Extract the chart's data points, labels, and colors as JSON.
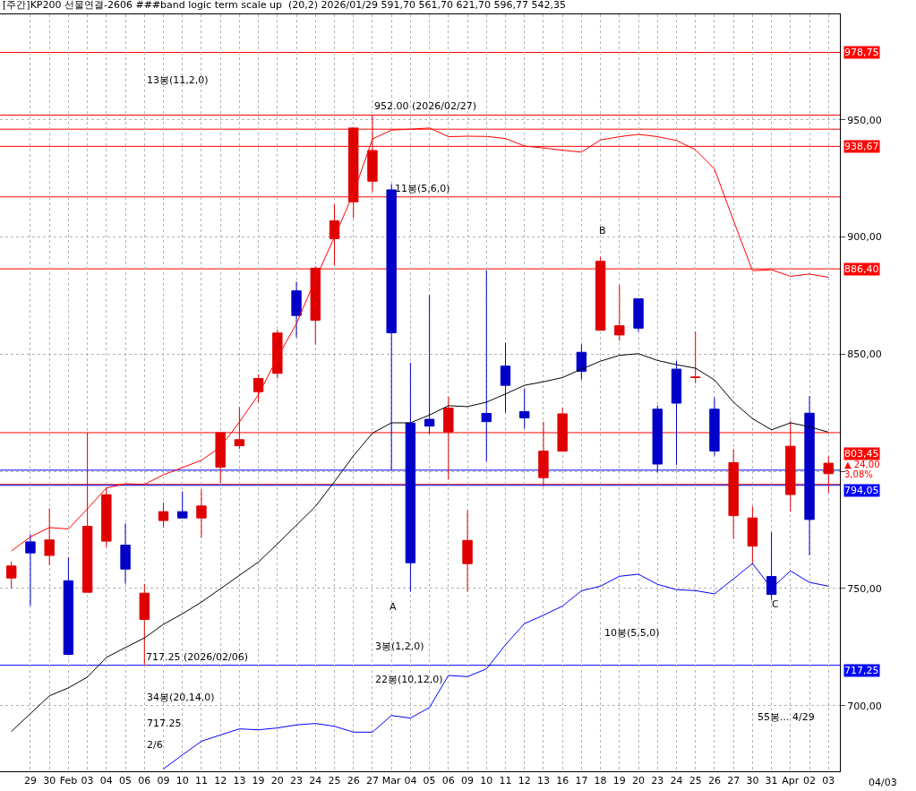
{
  "chart_data": {
    "type": "candlestick",
    "title": "[주간]KP200 선물연결-2606 ###band logic term scale up  (20,2) 2026/01/29 591,70 561,70 621,70 596,77 542,35",
    "categories": [
      null,
      "29",
      "30",
      "Feb",
      "03",
      "04",
      "05",
      "06",
      "09",
      "10",
      "11",
      "12",
      "13",
      "19",
      "20",
      "23",
      "24",
      "25",
      "26",
      "27",
      "Mar",
      "04",
      "05",
      "06",
      "09",
      "10",
      "11",
      "12",
      "13",
      "16",
      "17",
      "18",
      "19",
      "20",
      "23",
      "24",
      "25",
      "26",
      "27",
      "30",
      "31",
      "Apr",
      "02",
      "03"
    ],
    "ohlc": [
      [
        754.5,
        761.6,
        750,
        759.6
      ],
      [
        769.9,
        773.2,
        742.6,
        765.2
      ],
      [
        764.1,
        784.2,
        759.9,
        770.7
      ],
      [
        753.3,
        763.3,
        721.9,
        721.9
      ],
      [
        748.4,
        816.5,
        748.4,
        776.5
      ],
      [
        770.2,
        793,
        767.7,
        790
      ],
      [
        768.5,
        777.8,
        752,
        758.3
      ],
      [
        736.8,
        752,
        717.25,
        748
      ],
      [
        779,
        786.7,
        776,
        782.8
      ],
      [
        782.8,
        791.4,
        780.1,
        780.1
      ],
      [
        780.1,
        792.2,
        771.8,
        785.2
      ],
      [
        801.8,
        816.5,
        795,
        816.5
      ],
      [
        810.9,
        827.4,
        809.6,
        813.5
      ],
      [
        834,
        841.3,
        829.4,
        839.6
      ],
      [
        841.8,
        860.4,
        839.6,
        859
      ],
      [
        877,
        880.9,
        857.2,
        866.5
      ],
      [
        864.5,
        887.5,
        854.2,
        886.7
      ],
      [
        899.3,
        913.9,
        887.8,
        906.9
      ],
      [
        915,
        946.5,
        908,
        946.5
      ],
      [
        923.8,
        952,
        919.3,
        936.9
      ],
      [
        920.1,
        922.6,
        800.4,
        859.1
      ],
      [
        820.6,
        846.3,
        748.7,
        761
      ],
      [
        822.2,
        875.2,
        816,
        819.3
      ],
      [
        816.8,
        831.8,
        796.5,
        827
      ],
      [
        760.6,
        783.3,
        748.7,
        770.5
      ],
      [
        824.7,
        885.9,
        804.3,
        821.2
      ],
      [
        844.9,
        854.8,
        825.1,
        836.7
      ],
      [
        825.5,
        835.4,
        818.3,
        822.8
      ],
      [
        797.3,
        821.2,
        793.4,
        808.6
      ],
      [
        808.6,
        827,
        808.6,
        824.5
      ],
      [
        850.8,
        854.2,
        839.1,
        842.7
      ],
      [
        860.2,
        891.6,
        860.2,
        889.6
      ],
      [
        858.2,
        879.5,
        855.6,
        862.1
      ],
      [
        873.6,
        873.6,
        859.6,
        861.1
      ],
      [
        826.5,
        828.1,
        799.5,
        803.1
      ],
      [
        843.6,
        847.1,
        802.7,
        829.1
      ],
      [
        840,
        859.6,
        837.6,
        840.2
      ],
      [
        826.5,
        831.5,
        806.7,
        808.7
      ],
      [
        781.1,
        809.5,
        771.1,
        803.7
      ],
      [
        768.1,
        785.1,
        760.7,
        780.1
      ],
      [
        755.1,
        774.1,
        745.1,
        747.5
      ],
      [
        790.1,
        821.6,
        782.7,
        810.7
      ],
      [
        824.8,
        832.1,
        764.1,
        779.45
      ],
      [
        799,
        806.5,
        790.7,
        803.45
      ]
    ],
    "colors": [
      "#e00000",
      "#0000c8",
      "#e00000",
      "#0000c8",
      "#e00000",
      "#e00000",
      "#0000c8",
      "#e00000",
      "#e00000",
      "#0000c8",
      "#e00000",
      "#e00000",
      "#e00000",
      "#e00000",
      "#e00000",
      "#0000c8",
      "#e00000",
      "#e00000",
      "#e00000",
      "#e00000",
      "#0000c8",
      "#0000c8",
      "#0000c8",
      "#e00000",
      "#e00000",
      "#0000c8",
      "#0000c8",
      "#0000c8",
      "#e00000",
      "#e00000",
      "#0000c8",
      "#e00000",
      "#e00000",
      "#0000c8",
      "#0000c8",
      "#0000c8",
      "#e00000",
      "#0000c8",
      "#e00000",
      "#e00000",
      "#0000c8",
      "#e00000",
      "#0000c8",
      "#e00000"
    ],
    "series": [
      {
        "type": "line",
        "color": "#ff0000",
        "values": [
          766,
          772,
          776,
          775.4,
          784,
          792.9,
          794.7,
          794.4,
          798.5,
          801.6,
          804.7,
          810.4,
          821,
          832.7,
          848.5,
          863,
          882,
          900,
          918.6,
          941.8,
          945.6,
          946,
          946.5,
          942.8,
          943,
          942.9,
          942,
          938.8,
          938,
          937,
          936.2,
          941.4,
          942.8,
          943.8,
          942.8,
          941.2,
          937.2,
          929,
          907,
          885.6,
          886,
          883.2,
          884.2,
          882.8
        ]
      },
      {
        "type": "line",
        "color": "#000000",
        "values": [
          689,
          696.6,
          704.2,
          707.6,
          712.2,
          720.6,
          724.8,
          728.9,
          734.7,
          739.2,
          744.2,
          749.9,
          755.6,
          761.3,
          769,
          777,
          785,
          795.6,
          806.6,
          816.3,
          820.7,
          820.7,
          824,
          828,
          827.6,
          829.5,
          833,
          836.7,
          838.2,
          840,
          843.6,
          847,
          849.5,
          850.2,
          847.3,
          845.5,
          844,
          839,
          829.5,
          822.5,
          817.7,
          820.7,
          819,
          816.7
        ]
      },
      {
        "type": "line",
        "color": "#0000ff",
        "values": [
          null,
          null,
          null,
          null,
          null,
          null,
          null,
          null,
          673,
          679,
          684.8,
          687.5,
          690.1,
          689.7,
          690.5,
          691.8,
          692.4,
          691.2,
          688.7,
          688.7,
          695.8,
          694.7,
          699.2,
          712.9,
          712.4,
          715.7,
          726,
          735,
          738.6,
          742.5,
          749,
          751,
          755.2,
          756.1,
          751.8,
          749.5,
          749.1,
          747.7,
          754.1,
          760.7,
          750.1,
          757.5,
          752.6,
          751
        ]
      }
    ],
    "ylim": [
      672,
      995
    ],
    "yticks": [
      {
        "value": 700,
        "label": "700,00"
      },
      {
        "value": 750,
        "label": "750,00"
      },
      {
        "value": 800,
        "label": null
      },
      {
        "value": 850,
        "label": "850,00"
      },
      {
        "value": 900,
        "label": "900,00"
      },
      {
        "value": 950,
        "label": "950,00"
      }
    ],
    "grid": true,
    "ref_lines": [
      {
        "axis": "y",
        "value": 978.75,
        "label": "978,75",
        "color": "#ff0000"
      },
      {
        "axis": "y",
        "value": 952,
        "color": "#ff0000"
      },
      {
        "axis": "y",
        "value": 946,
        "color": "#ff0000"
      },
      {
        "axis": "y",
        "value": 938.67,
        "label": "938,67",
        "color": "#ff0000"
      },
      {
        "axis": "y",
        "value": 917.1,
        "color": "#ff0000"
      },
      {
        "axis": "y",
        "value": 886.4,
        "label": "886,40",
        "color": "#ff0000"
      },
      {
        "axis": "y",
        "value": 816.5,
        "color": "#ff0000"
      },
      {
        "axis": "y",
        "value": 800.5,
        "color": "#0000ff"
      },
      {
        "axis": "y",
        "value": 794.4,
        "color": "#ff0000"
      },
      {
        "axis": "y",
        "value": 794.05,
        "label": "794,05",
        "color": "#0000ff"
      },
      {
        "axis": "y",
        "value": 717.25,
        "label": "717,25",
        "color": "#0000ff"
      }
    ],
    "annotations": [
      {
        "text": "952.00 (2026/02/27)",
        "x": "27",
        "y": 952
      },
      {
        "text": "717.25 (2026/02/06)",
        "x": "06",
        "y": 717.25
      },
      "13봉(11,2,0)",
      "11봉(5,6,0)",
      "B",
      "A",
      "C",
      "10봉(5,5,0)",
      "3봉(1,2,0)",
      "22봉(10,12,0)",
      "34봉(20,14,0)",
      "717.25",
      "2/6",
      "55봉... 4/29",
      "803,45",
      "▲ 24,00",
      "3,08%",
      "04/03"
    ]
  }
}
